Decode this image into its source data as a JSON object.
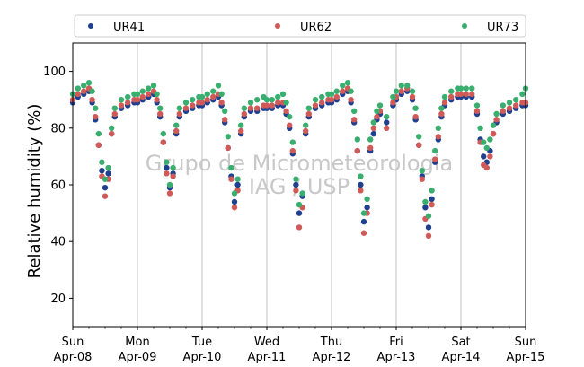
{
  "chart_data": {
    "type": "scatter",
    "ylabel": "Relative humidity (%)",
    "xlabel": "",
    "ylim": [
      10,
      110
    ],
    "xlim": [
      0,
      7
    ],
    "yticks": [
      20,
      40,
      60,
      80,
      100
    ],
    "xticks": [
      {
        "x": 0,
        "day": "Sun",
        "date": "Apr-08"
      },
      {
        "x": 1,
        "day": "Mon",
        "date": "Apr-09"
      },
      {
        "x": 2,
        "day": "Tue",
        "date": "Apr-10"
      },
      {
        "x": 3,
        "day": "Wed",
        "date": "Apr-11"
      },
      {
        "x": 4,
        "day": "Thu",
        "date": "Apr-12"
      },
      {
        "x": 5,
        "day": "Fri",
        "date": "Apr-13"
      },
      {
        "x": 6,
        "day": "Sat",
        "date": "Apr-14"
      },
      {
        "x": 7,
        "day": "Sun",
        "date": "Apr-15"
      }
    ],
    "grid": "vertical",
    "legend_position": "top",
    "watermark": [
      "Grupo de Micrometeorologia",
      "IAG / USP"
    ],
    "series": [
      {
        "name": "UR41",
        "color": "#1f3f8f",
        "points": [
          [
            0.0,
            89
          ],
          [
            0.08,
            91
          ],
          [
            0.17,
            92
          ],
          [
            0.25,
            93
          ],
          [
            0.3,
            89
          ],
          [
            0.35,
            83
          ],
          [
            0.4,
            74
          ],
          [
            0.45,
            65
          ],
          [
            0.5,
            59
          ],
          [
            0.55,
            64
          ],
          [
            0.6,
            78
          ],
          [
            0.65,
            84
          ],
          [
            0.75,
            87
          ],
          [
            0.85,
            88
          ],
          [
            0.95,
            89
          ],
          [
            1.0,
            89
          ],
          [
            1.08,
            90
          ],
          [
            1.17,
            91
          ],
          [
            1.25,
            92
          ],
          [
            1.3,
            89
          ],
          [
            1.35,
            84
          ],
          [
            1.4,
            75
          ],
          [
            1.45,
            66
          ],
          [
            1.5,
            59
          ],
          [
            1.55,
            64
          ],
          [
            1.6,
            78
          ],
          [
            1.65,
            84
          ],
          [
            1.75,
            86
          ],
          [
            1.85,
            87
          ],
          [
            1.95,
            88
          ],
          [
            2.0,
            88
          ],
          [
            2.08,
            89
          ],
          [
            2.17,
            90
          ],
          [
            2.25,
            91
          ],
          [
            2.3,
            88
          ],
          [
            2.35,
            82
          ],
          [
            2.4,
            73
          ],
          [
            2.45,
            63
          ],
          [
            2.5,
            54
          ],
          [
            2.55,
            60
          ],
          [
            2.6,
            78
          ],
          [
            2.65,
            84
          ],
          [
            2.75,
            86
          ],
          [
            2.85,
            86
          ],
          [
            2.95,
            87
          ],
          [
            3.0,
            87
          ],
          [
            3.08,
            87
          ],
          [
            3.17,
            88
          ],
          [
            3.25,
            88
          ],
          [
            3.3,
            85
          ],
          [
            3.35,
            80
          ],
          [
            3.4,
            71
          ],
          [
            3.45,
            60
          ],
          [
            3.5,
            50
          ],
          [
            3.55,
            56
          ],
          [
            3.6,
            78
          ],
          [
            3.65,
            84
          ],
          [
            3.75,
            87
          ],
          [
            3.85,
            88
          ],
          [
            3.95,
            89
          ],
          [
            4.0,
            89
          ],
          [
            4.08,
            90
          ],
          [
            4.17,
            92
          ],
          [
            4.25,
            93
          ],
          [
            4.3,
            89
          ],
          [
            4.35,
            82
          ],
          [
            4.4,
            72
          ],
          [
            4.45,
            60
          ],
          [
            4.5,
            47
          ],
          [
            4.55,
            52
          ],
          [
            4.6,
            72
          ],
          [
            4.65,
            78
          ],
          [
            4.7,
            83
          ],
          [
            4.75,
            85
          ],
          [
            4.85,
            82
          ],
          [
            4.95,
            88
          ],
          [
            5.0,
            90
          ],
          [
            5.08,
            92
          ],
          [
            5.17,
            93
          ],
          [
            5.25,
            90
          ],
          [
            5.3,
            83
          ],
          [
            5.35,
            74
          ],
          [
            5.4,
            63
          ],
          [
            5.45,
            52
          ],
          [
            5.5,
            45
          ],
          [
            5.55,
            55
          ],
          [
            5.6,
            68
          ],
          [
            5.65,
            76
          ],
          [
            5.7,
            84
          ],
          [
            5.75,
            88
          ],
          [
            5.85,
            90
          ],
          [
            5.95,
            91
          ],
          [
            6.0,
            91
          ],
          [
            6.08,
            91
          ],
          [
            6.17,
            91
          ],
          [
            6.25,
            85
          ],
          [
            6.3,
            76
          ],
          [
            6.35,
            70
          ],
          [
            6.4,
            68
          ],
          [
            6.45,
            72
          ],
          [
            6.5,
            78
          ],
          [
            6.55,
            82
          ],
          [
            6.65,
            85
          ],
          [
            6.75,
            86
          ],
          [
            6.85,
            87
          ],
          [
            6.95,
            88
          ],
          [
            7.0,
            88
          ]
        ]
      },
      {
        "name": "UR62",
        "color": "#d05a57",
        "points": [
          [
            0.0,
            90
          ],
          [
            0.08,
            92
          ],
          [
            0.17,
            93
          ],
          [
            0.25,
            94
          ],
          [
            0.3,
            90
          ],
          [
            0.35,
            84
          ],
          [
            0.4,
            74
          ],
          [
            0.45,
            63
          ],
          [
            0.5,
            56
          ],
          [
            0.55,
            62
          ],
          [
            0.6,
            78
          ],
          [
            0.65,
            85
          ],
          [
            0.75,
            88
          ],
          [
            0.85,
            89
          ],
          [
            0.95,
            90
          ],
          [
            1.0,
            90
          ],
          [
            1.08,
            91
          ],
          [
            1.17,
            92
          ],
          [
            1.25,
            93
          ],
          [
            1.3,
            90
          ],
          [
            1.35,
            85
          ],
          [
            1.4,
            75
          ],
          [
            1.45,
            64
          ],
          [
            1.5,
            57
          ],
          [
            1.55,
            63
          ],
          [
            1.6,
            79
          ],
          [
            1.65,
            85
          ],
          [
            1.75,
            87
          ],
          [
            1.85,
            88
          ],
          [
            1.95,
            89
          ],
          [
            2.0,
            89
          ],
          [
            2.08,
            90
          ],
          [
            2.17,
            91
          ],
          [
            2.25,
            92
          ],
          [
            2.3,
            89
          ],
          [
            2.35,
            83
          ],
          [
            2.4,
            73
          ],
          [
            2.45,
            62
          ],
          [
            2.5,
            52
          ],
          [
            2.55,
            58
          ],
          [
            2.6,
            79
          ],
          [
            2.65,
            85
          ],
          [
            2.75,
            87
          ],
          [
            2.85,
            87
          ],
          [
            2.95,
            88
          ],
          [
            3.0,
            88
          ],
          [
            3.08,
            88
          ],
          [
            3.17,
            89
          ],
          [
            3.25,
            89
          ],
          [
            3.3,
            86
          ],
          [
            3.35,
            81
          ],
          [
            3.4,
            72
          ],
          [
            3.45,
            58
          ],
          [
            3.5,
            45
          ],
          [
            3.55,
            52
          ],
          [
            3.6,
            79
          ],
          [
            3.65,
            85
          ],
          [
            3.75,
            88
          ],
          [
            3.85,
            89
          ],
          [
            3.95,
            90
          ],
          [
            4.0,
            90
          ],
          [
            4.08,
            91
          ],
          [
            4.17,
            93
          ],
          [
            4.25,
            94
          ],
          [
            4.3,
            90
          ],
          [
            4.35,
            83
          ],
          [
            4.4,
            72
          ],
          [
            4.45,
            58
          ],
          [
            4.5,
            43
          ],
          [
            4.55,
            50
          ],
          [
            4.6,
            73
          ],
          [
            4.65,
            80
          ],
          [
            4.7,
            84
          ],
          [
            4.75,
            86
          ],
          [
            4.85,
            80
          ],
          [
            4.95,
            89
          ],
          [
            5.0,
            91
          ],
          [
            5.08,
            93
          ],
          [
            5.17,
            94
          ],
          [
            5.25,
            91
          ],
          [
            5.3,
            84
          ],
          [
            5.35,
            74
          ],
          [
            5.4,
            62
          ],
          [
            5.45,
            48
          ],
          [
            5.5,
            42
          ],
          [
            5.55,
            53
          ],
          [
            5.6,
            69
          ],
          [
            5.65,
            77
          ],
          [
            5.7,
            85
          ],
          [
            5.75,
            89
          ],
          [
            5.85,
            91
          ],
          [
            5.95,
            92
          ],
          [
            6.0,
            92
          ],
          [
            6.08,
            92
          ],
          [
            6.17,
            92
          ],
          [
            6.25,
            86
          ],
          [
            6.3,
            75
          ],
          [
            6.35,
            67
          ],
          [
            6.4,
            66
          ],
          [
            6.45,
            70
          ],
          [
            6.5,
            78
          ],
          [
            6.55,
            83
          ],
          [
            6.65,
            86
          ],
          [
            6.75,
            87
          ],
          [
            6.85,
            88
          ],
          [
            6.95,
            89
          ],
          [
            7.0,
            89
          ]
        ]
      },
      {
        "name": "UR73",
        "color": "#3aae6e",
        "points": [
          [
            0.0,
            92
          ],
          [
            0.08,
            94
          ],
          [
            0.17,
            95
          ],
          [
            0.25,
            96
          ],
          [
            0.3,
            93
          ],
          [
            0.35,
            87
          ],
          [
            0.4,
            78
          ],
          [
            0.45,
            68
          ],
          [
            0.5,
            62
          ],
          [
            0.55,
            66
          ],
          [
            0.6,
            80
          ],
          [
            0.65,
            87
          ],
          [
            0.75,
            90
          ],
          [
            0.85,
            91
          ],
          [
            0.95,
            92
          ],
          [
            1.0,
            92
          ],
          [
            1.08,
            93
          ],
          [
            1.17,
            94
          ],
          [
            1.25,
            95
          ],
          [
            1.3,
            92
          ],
          [
            1.35,
            87
          ],
          [
            1.4,
            78
          ],
          [
            1.45,
            68
          ],
          [
            1.5,
            60
          ],
          [
            1.55,
            66
          ],
          [
            1.6,
            81
          ],
          [
            1.65,
            87
          ],
          [
            1.75,
            89
          ],
          [
            1.85,
            90
          ],
          [
            1.95,
            91
          ],
          [
            2.0,
            91
          ],
          [
            2.08,
            92
          ],
          [
            2.17,
            93
          ],
          [
            2.25,
            95
          ],
          [
            2.3,
            92
          ],
          [
            2.35,
            86
          ],
          [
            2.4,
            77
          ],
          [
            2.45,
            66
          ],
          [
            2.5,
            57
          ],
          [
            2.55,
            62
          ],
          [
            2.6,
            81
          ],
          [
            2.65,
            87
          ],
          [
            2.75,
            89
          ],
          [
            2.85,
            90
          ],
          [
            2.95,
            91
          ],
          [
            3.0,
            90
          ],
          [
            3.08,
            90
          ],
          [
            3.17,
            91
          ],
          [
            3.25,
            92
          ],
          [
            3.3,
            89
          ],
          [
            3.35,
            84
          ],
          [
            3.4,
            75
          ],
          [
            3.45,
            62
          ],
          [
            3.5,
            53
          ],
          [
            3.55,
            57
          ],
          [
            3.6,
            81
          ],
          [
            3.65,
            87
          ],
          [
            3.75,
            90
          ],
          [
            3.85,
            91
          ],
          [
            3.95,
            92
          ],
          [
            4.0,
            92
          ],
          [
            4.08,
            93
          ],
          [
            4.17,
            95
          ],
          [
            4.25,
            96
          ],
          [
            4.3,
            93
          ],
          [
            4.35,
            86
          ],
          [
            4.4,
            76
          ],
          [
            4.45,
            63
          ],
          [
            4.5,
            50
          ],
          [
            4.55,
            55
          ],
          [
            4.6,
            76
          ],
          [
            4.65,
            82
          ],
          [
            4.7,
            86
          ],
          [
            4.75,
            88
          ],
          [
            4.85,
            84
          ],
          [
            4.95,
            91
          ],
          [
            5.0,
            93
          ],
          [
            5.08,
            95
          ],
          [
            5.17,
            95
          ],
          [
            5.25,
            93
          ],
          [
            5.3,
            87
          ],
          [
            5.35,
            77
          ],
          [
            5.4,
            65
          ],
          [
            5.45,
            54
          ],
          [
            5.5,
            49
          ],
          [
            5.55,
            58
          ],
          [
            5.6,
            72
          ],
          [
            5.65,
            80
          ],
          [
            5.7,
            87
          ],
          [
            5.75,
            91
          ],
          [
            5.85,
            93
          ],
          [
            5.95,
            94
          ],
          [
            6.0,
            94
          ],
          [
            6.08,
            94
          ],
          [
            6.17,
            94
          ],
          [
            6.25,
            88
          ],
          [
            6.3,
            80
          ],
          [
            6.35,
            75
          ],
          [
            6.4,
            73
          ],
          [
            6.45,
            76
          ],
          [
            6.5,
            81
          ],
          [
            6.55,
            85
          ],
          [
            6.65,
            88
          ],
          [
            6.75,
            89
          ],
          [
            6.85,
            90
          ],
          [
            6.95,
            92
          ],
          [
            7.0,
            94
          ]
        ]
      }
    ]
  }
}
